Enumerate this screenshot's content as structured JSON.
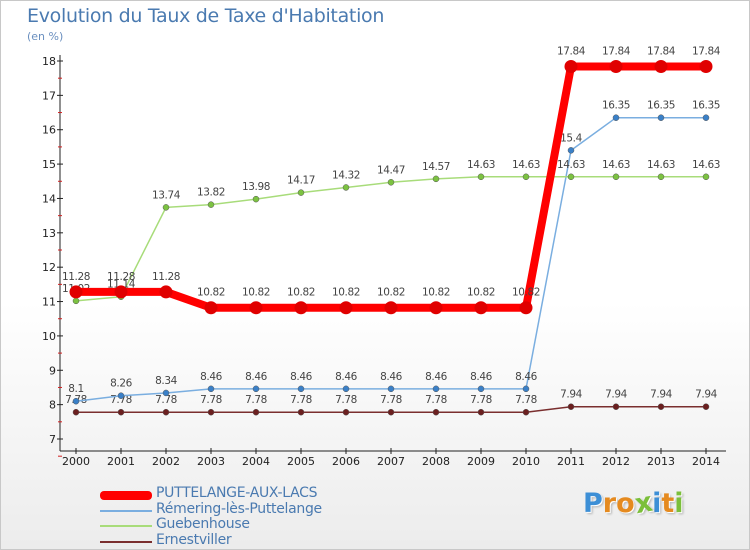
{
  "title": "Evolution du Taux de Taxe d'Habitation",
  "unit": "(en %)",
  "logo": {
    "text": "Proxiti",
    "colors": [
      "#3d8fd6",
      "#e58a1f",
      "#e58a1f",
      "#7bbf3a",
      "#3d8fd6",
      "#e58a1f",
      "#7bbf3a"
    ]
  },
  "chart_data": {
    "type": "line",
    "title": "Evolution du Taux de Taxe d'Habitation",
    "ylabel": "(en %)",
    "xlabel": "",
    "x": [
      "2000",
      "2001",
      "2002",
      "2003",
      "2004",
      "2005",
      "2006",
      "2007",
      "2008",
      "2009",
      "2010",
      "2011",
      "2012",
      "2013",
      "2014"
    ],
    "ylim": [
      7,
      18
    ],
    "yticks": [
      7,
      8,
      9,
      10,
      11,
      12,
      13,
      14,
      15,
      16,
      17,
      18
    ],
    "grid": false,
    "legend": "bottom-left",
    "series": [
      {
        "name": "Ernestviller",
        "color": "#7a2e2e",
        "marker": "#6b1f1f",
        "values": [
          7.78,
          7.78,
          7.78,
          7.78,
          7.78,
          7.78,
          7.78,
          7.78,
          7.78,
          7.78,
          7.78,
          7.94,
          7.94,
          7.94,
          7.94
        ],
        "labels": [
          "7.78",
          "7.78",
          "7.78",
          "7.78",
          "7.78",
          "7.78",
          "7.78",
          "7.78",
          "7.78",
          "7.78",
          "7.78",
          "7.94",
          "7.94",
          "7.94",
          "7.94"
        ]
      },
      {
        "name": "Rémering-lès-Puttelange",
        "color": "#7aaee0",
        "marker": "#3a80c8",
        "values": [
          8.1,
          8.26,
          8.34,
          8.46,
          8.46,
          8.46,
          8.46,
          8.46,
          8.46,
          8.46,
          8.46,
          15.4,
          16.35,
          16.35,
          16.35
        ],
        "labels": [
          "8.1",
          "8.26",
          "8.34",
          "8.46",
          "8.46",
          "8.46",
          "8.46",
          "8.46",
          "8.46",
          "8.46",
          "8.46",
          "15.4",
          "16.35",
          "16.35",
          "16.35"
        ]
      },
      {
        "name": "Guebenhouse",
        "color": "#a8dc7a",
        "marker": "#7cc241",
        "values": [
          11.02,
          11.14,
          13.74,
          13.82,
          13.98,
          14.17,
          14.32,
          14.47,
          14.57,
          14.63,
          14.63,
          14.63,
          14.63,
          14.63,
          14.63
        ],
        "labels": [
          "11.02",
          "11.14",
          "13.74",
          "13.82",
          "13.98",
          "14.17",
          "14.32",
          "14.47",
          "14.57",
          "14.63",
          "14.63",
          "14.63",
          "14.63",
          "14.63",
          "14.63"
        ]
      },
      {
        "name": "PUTTELANGE-AUX-LACS",
        "color": "#ff0000",
        "marker": "#e00000",
        "bold": true,
        "values": [
          11.28,
          11.28,
          11.28,
          10.82,
          10.82,
          10.82,
          10.82,
          10.82,
          10.82,
          10.82,
          10.82,
          17.84,
          17.84,
          17.84,
          17.84
        ],
        "labels": [
          "11.28",
          "11.28",
          "11.28",
          "10.82",
          "10.82",
          "10.82",
          "10.82",
          "10.82",
          "10.82",
          "10.82",
          "10.82",
          "17.84",
          "17.84",
          "17.84",
          "17.84"
        ]
      }
    ]
  },
  "legend": [
    {
      "label": "PUTTELANGE-AUX-LACS",
      "color": "#ff0000",
      "bold": true
    },
    {
      "label": "Rémering-lès-Puttelange",
      "color": "#7aaee0"
    },
    {
      "label": "Guebenhouse",
      "color": "#a8dc7a"
    },
    {
      "label": "Ernestviller",
      "color": "#7a2e2e"
    }
  ]
}
